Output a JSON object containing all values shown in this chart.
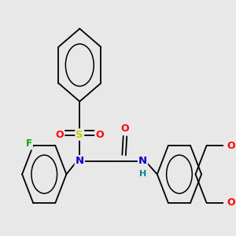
{
  "background_color": "#e8e8e8",
  "bond_color": "#000000",
  "atom_colors": {
    "S": "#cccc00",
    "N": "#0000cc",
    "O": "#ff0000",
    "F": "#00aa00",
    "C": "#000000",
    "H": "#008888"
  },
  "figsize": [
    3.0,
    3.0
  ],
  "dpi": 100
}
